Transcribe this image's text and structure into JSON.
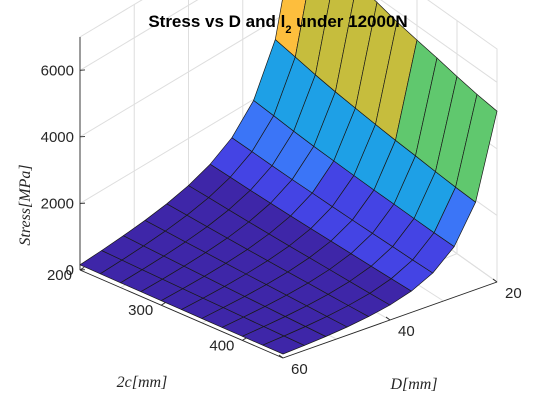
{
  "chart_data": {
    "type": "surface3d",
    "title_main": "Stress vs D and l",
    "title_sub": "2",
    "title_tail": " under 12000N",
    "xlabel": "D[mm]",
    "ylabel": "2c[mm]",
    "zlabel": "Stress[MPa]",
    "x_ticks": [
      "20",
      "40",
      "60"
    ],
    "y_ticks": [
      "200",
      "300",
      "400"
    ],
    "z_ticks": [
      "0",
      "2000",
      "4000",
      "6000"
    ],
    "D_values": [
      20,
      24,
      28,
      32,
      36,
      40,
      44,
      48,
      52,
      56,
      60
    ],
    "twoc_values": [
      200,
      225,
      250,
      275,
      300,
      325,
      350,
      375,
      400,
      425,
      450
    ],
    "xlim": [
      20,
      60
    ],
    "ylim": [
      200,
      450
    ],
    "zlim": [
      0,
      7000
    ],
    "stress_formula_note_free": true,
    "stress_grid": [
      [
        6660,
        3410,
        1970,
        1240,
        835,
        587,
        428,
        322,
        248,
        194,
        155
      ],
      [
        6435,
        3295,
        1905,
        1200,
        805,
        567,
        414,
        311,
        239,
        188,
        150
      ],
      [
        6195,
        3170,
        1835,
        1155,
        775,
        546,
        398,
        299,
        230,
        181,
        145
      ],
      [
        5995,
        3070,
        1775,
        1120,
        750,
        528,
        385,
        290,
        223,
        175,
        140
      ],
      [
        5840,
        2990,
        1730,
        1090,
        730,
        514,
        375,
        282,
        217,
        170,
        136
      ],
      [
        5680,
        2910,
        1685,
        1060,
        710,
        500,
        365,
        274,
        211,
        166,
        133
      ],
      [
        5560,
        2845,
        1645,
        1035,
        695,
        489,
        357,
        268,
        206,
        162,
        130
      ],
      [
        5450,
        2790,
        1615,
        1015,
        680,
        480,
        350,
        263,
        202,
        159,
        127
      ],
      [
        5320,
        2725,
        1575,
        992,
        665,
        468,
        341,
        256,
        197,
        155,
        124
      ],
      [
        5210,
        2665,
        1545,
        970,
        650,
        458,
        334,
        251,
        193,
        152,
        121
      ],
      [
        5130,
        2625,
        1520,
        955,
        640,
        451,
        329,
        247,
        190,
        150,
        120
      ]
    ],
    "colormap": [
      "#3e26a8",
      "#4444e4",
      "#3b75f7",
      "#1ea0e6",
      "#1cbcb0",
      "#60c86e",
      "#c6bd3d",
      "#fdbe3d",
      "#f5e023",
      "#f9fb0e"
    ],
    "grid": true
  }
}
